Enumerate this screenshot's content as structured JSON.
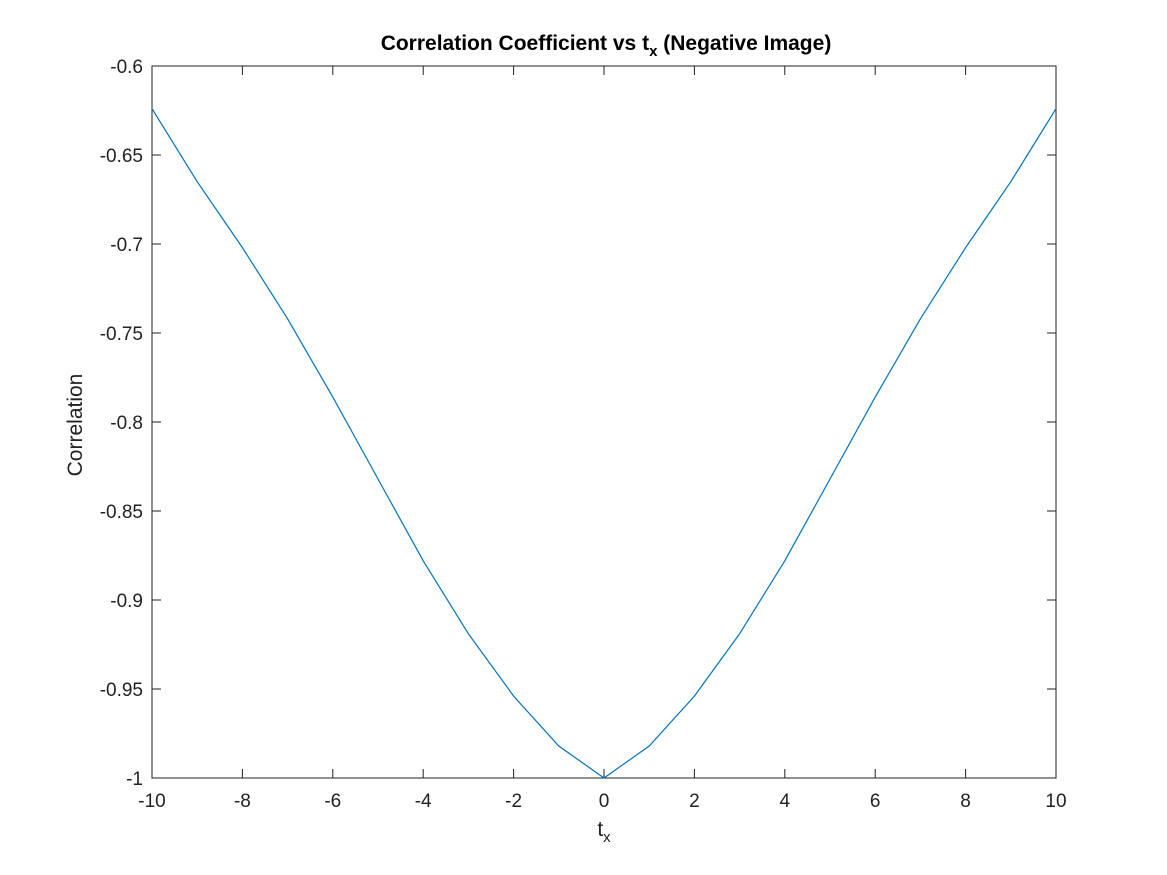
{
  "chart_data": {
    "type": "line",
    "title_main": "Correlation Coefficient vs t",
    "title_sub": "x",
    "title_rest": " (Negative Image)",
    "xlabel_main": "t",
    "xlabel_sub": "x",
    "ylabel": "Correlation",
    "xlim": [
      -10,
      10
    ],
    "ylim": [
      -1,
      -0.6
    ],
    "xticks": [
      -10,
      -8,
      -6,
      -4,
      -2,
      0,
      2,
      4,
      6,
      8,
      10
    ],
    "xtick_labels": [
      "-10",
      "-8",
      "-6",
      "-4",
      "-2",
      "0",
      "2",
      "4",
      "6",
      "8",
      "10"
    ],
    "yticks": [
      -1,
      -0.95,
      -0.9,
      -0.85,
      -0.8,
      -0.75,
      -0.7,
      -0.65,
      -0.6
    ],
    "ytick_labels": [
      "-1",
      "-0.95",
      "-0.9",
      "-0.85",
      "-0.8",
      "-0.75",
      "-0.7",
      "-0.65",
      "-0.6"
    ],
    "grid": false,
    "line_color": "#0072BD",
    "x": [
      -10,
      -9,
      -8,
      -7,
      -6,
      -5,
      -4,
      -3,
      -2,
      -1,
      0,
      1,
      2,
      3,
      4,
      5,
      6,
      7,
      8,
      9,
      10
    ],
    "y": [
      -0.624,
      -0.665,
      -0.702,
      -0.742,
      -0.786,
      -0.832,
      -0.878,
      -0.919,
      -0.954,
      -0.982,
      -1.0,
      -0.982,
      -0.954,
      -0.919,
      -0.878,
      -0.832,
      -0.786,
      -0.742,
      -0.702,
      -0.665,
      -0.624
    ]
  }
}
